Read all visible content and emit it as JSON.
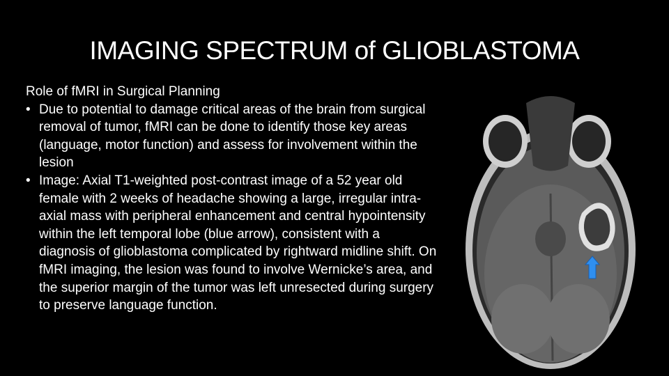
{
  "header": {
    "title": "IMAGING SPECTRUM of GLIOBLASTOMA"
  },
  "body": {
    "heading": "Role of fMRI in Surgical Planning",
    "bullets": [
      "Due to potential to damage critical areas of the brain from surgical removal of tumor, fMRI can be done to identify those key areas (language, motor function) and assess for involvement within the lesion",
      "Image: Axial T1-weighted post-contrast image of a 52 year old female with 2 weeks of headache showing a large, irregular intra-axial mass with peripheral enhancement and central hypointensity within the left temporal lobe (blue arrow), consistent with a diagnosis of glioblastoma complicated by rightward midline shift. On fMRI imaging, the lesion was found to involve Wernicke’s area, and the superior margin of the tumor was left unresected during surgery to preserve language function."
    ]
  }
}
